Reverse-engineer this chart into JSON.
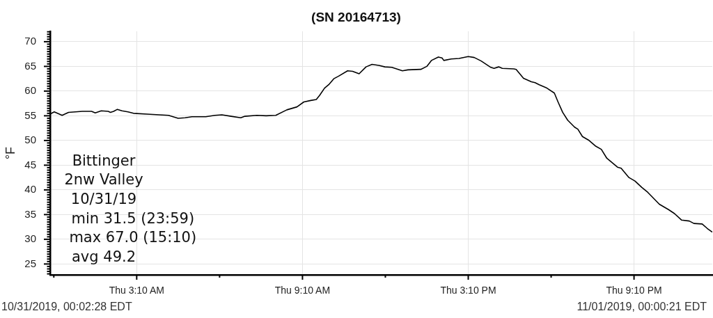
{
  "chart_data": {
    "type": "line",
    "title": "(SN 20164713)",
    "ylabel": "°F",
    "x": [
      "2019-10-31T00:03",
      "2019-10-31T00:11",
      "2019-10-31T00:28",
      "2019-10-31T00:42",
      "2019-10-31T01:12",
      "2019-10-31T01:32",
      "2019-10-31T01:40",
      "2019-10-31T01:53",
      "2019-10-31T02:08",
      "2019-10-31T02:13",
      "2019-10-31T02:20",
      "2019-10-31T02:28",
      "2019-10-31T02:38",
      "2019-10-31T02:51",
      "2019-10-31T03:03",
      "2019-10-31T03:39",
      "2019-10-31T04:19",
      "2019-10-31T04:40",
      "2019-10-31T04:55",
      "2019-10-31T05:10",
      "2019-10-31T05:40",
      "2019-10-31T06:00",
      "2019-10-31T06:15",
      "2019-10-31T06:35",
      "2019-10-31T06:56",
      "2019-10-31T07:05",
      "2019-10-31T07:31",
      "2019-10-31T07:51",
      "2019-10-31T08:12",
      "2019-10-31T08:36",
      "2019-10-31T08:58",
      "2019-10-31T09:13",
      "2019-10-31T09:28",
      "2019-10-31T09:40",
      "2019-10-31T09:47",
      "2019-10-31T09:58",
      "2019-10-31T10:07",
      "2019-10-31T10:18",
      "2019-10-31T10:28",
      "2019-10-31T10:48",
      "2019-10-31T10:59",
      "2019-10-31T11:13",
      "2019-10-31T11:28",
      "2019-10-31T11:41",
      "2019-10-31T11:56",
      "2019-10-31T12:09",
      "2019-10-31T12:24",
      "2019-10-31T12:47",
      "2019-10-31T12:59",
      "2019-10-31T13:27",
      "2019-10-31T13:40",
      "2019-10-31T13:50",
      "2019-10-31T14:05",
      "2019-10-31T14:13",
      "2019-10-31T14:17",
      "2019-10-31T14:33",
      "2019-10-31T14:50",
      "2019-10-31T15:10",
      "2019-10-31T15:23",
      "2019-10-31T15:38",
      "2019-10-31T15:59",
      "2019-10-31T16:06",
      "2019-10-31T16:16",
      "2019-10-31T16:24",
      "2019-10-31T16:49",
      "2019-10-31T16:54",
      "2019-10-31T17:10",
      "2019-10-31T17:27",
      "2019-10-31T17:35",
      "2019-10-31T17:44",
      "2019-10-31T17:59",
      "2019-10-31T18:17",
      "2019-10-31T18:25",
      "2019-10-31T18:35",
      "2019-10-31T18:46",
      "2019-10-31T19:01",
      "2019-10-31T19:08",
      "2019-10-31T19:18",
      "2019-10-31T19:31",
      "2019-10-31T19:46",
      "2019-10-31T19:59",
      "2019-10-31T20:11",
      "2019-10-31T20:34",
      "2019-10-31T20:42",
      "2019-10-31T20:59",
      "2019-10-31T21:12",
      "2019-10-31T21:27",
      "2019-10-31T21:40",
      "2019-10-31T22:05",
      "2019-10-31T22:25",
      "2019-10-31T22:38",
      "2019-10-31T22:53",
      "2019-10-31T23:10",
      "2019-10-31T23:20",
      "2019-10-31T23:38",
      "2019-10-31T23:49",
      "2019-10-31T23:59"
    ],
    "values": [
      55.4,
      55.8,
      55.1,
      55.7,
      55.9,
      55.9,
      55.6,
      56.0,
      55.9,
      55.7,
      55.9,
      56.3,
      56.0,
      55.8,
      55.5,
      55.3,
      55.1,
      54.5,
      54.6,
      54.8,
      54.8,
      55.1,
      55.2,
      54.9,
      54.6,
      54.9,
      55.1,
      55.0,
      55.1,
      56.2,
      56.8,
      57.8,
      58.1,
      58.3,
      59.1,
      60.6,
      61.3,
      62.5,
      63.0,
      64.1,
      64.0,
      63.5,
      64.9,
      65.4,
      65.2,
      64.9,
      64.8,
      64.1,
      64.3,
      64.4,
      65.0,
      66.2,
      66.9,
      66.7,
      66.2,
      66.5,
      66.6,
      67.0,
      66.8,
      66.1,
      64.8,
      64.6,
      64.9,
      64.6,
      64.5,
      64.4,
      62.6,
      61.9,
      61.7,
      61.3,
      60.7,
      59.6,
      57.8,
      55.7,
      54.1,
      52.7,
      52.3,
      50.8,
      50.1,
      48.9,
      48.2,
      46.4,
      44.6,
      44.4,
      42.5,
      41.8,
      40.5,
      39.5,
      37.1,
      36.0,
      35.2,
      33.9,
      33.7,
      33.2,
      33.1,
      32.2,
      31.5
    ],
    "color": "#000000",
    "marker": "none",
    "line_style": "solid",
    "grid": true,
    "xlim": [
      "2019-10-31T00:02",
      "2019-11-01T00:00"
    ],
    "xticks": [
      {
        "value": "2019-10-31T00:10",
        "label": null
      },
      {
        "value": "2019-10-31T03:10",
        "label": "Thu 3:10 AM"
      },
      {
        "value": "2019-10-31T06:10",
        "label": null
      },
      {
        "value": "2019-10-31T09:10",
        "label": "Thu 9:10 AM"
      },
      {
        "value": "2019-10-31T12:10",
        "label": null
      },
      {
        "value": "2019-10-31T15:10",
        "label": "Thu 3:10 PM"
      },
      {
        "value": "2019-10-31T18:10",
        "label": null
      },
      {
        "value": "2019-10-31T21:10",
        "label": "Thu 9:10 PM"
      }
    ],
    "ylim": [
      22.8,
      72.1
    ],
    "yticks": [
      {
        "value": 23,
        "label": null
      },
      {
        "value": 23.5,
        "label": null
      },
      {
        "value": 24,
        "label": null
      },
      {
        "value": 24.5,
        "label": null
      },
      25,
      {
        "value": 25.5,
        "label": null
      },
      {
        "value": 26,
        "label": null
      },
      {
        "value": 26.5,
        "label": null
      },
      {
        "value": 27,
        "label": null
      },
      {
        "value": 27.5,
        "label": null
      },
      {
        "value": 28,
        "label": null
      },
      {
        "value": 28.5,
        "label": null
      },
      {
        "value": 29,
        "label": null
      },
      {
        "value": 29.5,
        "label": null
      },
      30,
      {
        "value": 30.5,
        "label": null
      },
      {
        "value": 31,
        "label": null
      },
      {
        "value": 31.5,
        "label": null
      },
      {
        "value": 32,
        "label": null
      },
      {
        "value": 32.5,
        "label": null
      },
      {
        "value": 33,
        "label": null
      },
      {
        "value": 33.5,
        "label": null
      },
      {
        "value": 34,
        "label": null
      },
      {
        "value": 34.5,
        "label": null
      },
      35,
      {
        "value": 35.5,
        "label": null
      },
      {
        "value": 36,
        "label": null
      },
      {
        "value": 36.5,
        "label": null
      },
      {
        "value": 37,
        "label": null
      },
      {
        "value": 37.5,
        "label": null
      },
      {
        "value": 38,
        "label": null
      },
      {
        "value": 38.5,
        "label": null
      },
      {
        "value": 39,
        "label": null
      },
      {
        "value": 39.5,
        "label": null
      },
      40,
      {
        "value": 40.5,
        "label": null
      },
      {
        "value": 41,
        "label": null
      },
      {
        "value": 41.5,
        "label": null
      },
      {
        "value": 42,
        "label": null
      },
      {
        "value": 42.5,
        "label": null
      },
      {
        "value": 43,
        "label": null
      },
      {
        "value": 43.5,
        "label": null
      },
      {
        "value": 44,
        "label": null
      },
      {
        "value": 44.5,
        "label": null
      },
      45,
      {
        "value": 45.5,
        "label": null
      },
      {
        "value": 46,
        "label": null
      },
      {
        "value": 46.5,
        "label": null
      },
      {
        "value": 47,
        "label": null
      },
      {
        "value": 47.5,
        "label": null
      },
      {
        "value": 48,
        "label": null
      },
      {
        "value": 48.5,
        "label": null
      },
      {
        "value": 49,
        "label": null
      },
      {
        "value": 49.5,
        "label": null
      },
      50,
      {
        "value": 50.5,
        "label": null
      },
      {
        "value": 51,
        "label": null
      },
      {
        "value": 51.5,
        "label": null
      },
      {
        "value": 52,
        "label": null
      },
      {
        "value": 52.5,
        "label": null
      },
      {
        "value": 53,
        "label": null
      },
      {
        "value": 53.5,
        "label": null
      },
      {
        "value": 54,
        "label": null
      },
      {
        "value": 54.5,
        "label": null
      },
      55,
      {
        "value": 55.5,
        "label": null
      },
      {
        "value": 56,
        "label": null
      },
      {
        "value": 56.5,
        "label": null
      },
      {
        "value": 57,
        "label": null
      },
      {
        "value": 57.5,
        "label": null
      },
      {
        "value": 58,
        "label": null
      },
      {
        "value": 58.5,
        "label": null
      },
      {
        "value": 59,
        "label": null
      },
      {
        "value": 59.5,
        "label": null
      },
      60,
      {
        "value": 60.5,
        "label": null
      },
      {
        "value": 61,
        "label": null
      },
      {
        "value": 61.5,
        "label": null
      },
      {
        "value": 62,
        "label": null
      },
      {
        "value": 62.5,
        "label": null
      },
      {
        "value": 63,
        "label": null
      },
      {
        "value": 63.5,
        "label": null
      },
      {
        "value": 64,
        "label": null
      },
      {
        "value": 64.5,
        "label": null
      },
      65,
      {
        "value": 65.5,
        "label": null
      },
      {
        "value": 66,
        "label": null
      },
      {
        "value": 66.5,
        "label": null
      },
      {
        "value": 67,
        "label": null
      },
      {
        "value": 67.5,
        "label": null
      },
      {
        "value": 68,
        "label": null
      },
      {
        "value": 68.5,
        "label": null
      },
      {
        "value": 69,
        "label": null
      },
      {
        "value": 69.5,
        "label": null
      },
      70,
      {
        "value": 70.5,
        "label": null
      },
      {
        "value": 71,
        "label": null
      },
      {
        "value": 71.5,
        "label": null
      },
      {
        "value": 72,
        "label": null
      }
    ],
    "annotations": [
      "Bittinger",
      "2nw Valley",
      "10/31/19",
      "min 31.5 (23:59)",
      "max 67.0 (15:10)",
      "avg 49.2",
      "10/31/2019, 00:02:28 EDT",
      "11/01/2019, 00:00:21 EDT"
    ]
  }
}
